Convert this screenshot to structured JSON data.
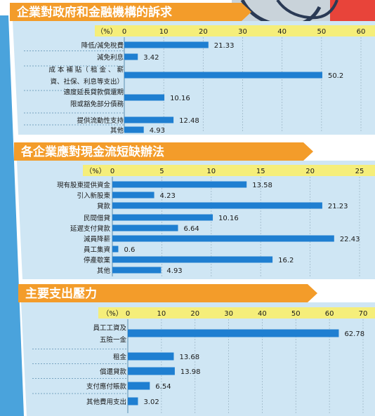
{
  "colors": {
    "title_banner": "#f39c2a",
    "panel": "#cfe6f4",
    "bar": "#1f7fd1",
    "axis_band": "#f5ee7a",
    "left_strip": "#4aa3dc"
  },
  "chart_data": [
    {
      "type": "bar",
      "orientation": "horizontal",
      "title": "企業對政府和金融機構的訴求",
      "unit": "（%）",
      "xlim": [
        0,
        60
      ],
      "ticks": [
        "0",
        "10",
        "20",
        "30",
        "40",
        "50",
        "60"
      ],
      "categories": [
        [
          "降低/減免稅費"
        ],
        [
          "減免利息"
        ],
        [
          "成 本 補 貼（ 租 金 、 薪",
          "資、社保、利息等支出）"
        ],
        [
          "適度延長貸款償還期",
          "限或豁免部分債務"
        ],
        [
          "提供流動性支持"
        ],
        [
          "其他"
        ]
      ],
      "values": [
        21.33,
        3.42,
        50.2,
        10.16,
        12.48,
        4.93
      ],
      "value_labels": [
        "21.33",
        "3.42",
        "50.2",
        "10.16",
        "12.48",
        "4.93"
      ]
    },
    {
      "type": "bar",
      "orientation": "horizontal",
      "title": "各企業應對現金流短缺辦法",
      "unit": "（%）",
      "xlim": [
        0,
        25
      ],
      "ticks": [
        "0",
        "5",
        "10",
        "15",
        "20",
        "25"
      ],
      "categories": [
        [
          "現有股東提供資金"
        ],
        [
          "引入新股東"
        ],
        [
          "貸款"
        ],
        [
          "民間借貸"
        ],
        [
          "延遲支付貸款"
        ],
        [
          "減員降薪"
        ],
        [
          "員工集資"
        ],
        [
          "停產歇業"
        ],
        [
          "其他"
        ]
      ],
      "values": [
        13.58,
        4.23,
        21.23,
        10.16,
        6.64,
        22.43,
        0.6,
        16.2,
        4.93
      ],
      "value_labels": [
        "13.58",
        "4.23",
        "21.23",
        "10.16",
        "6.64",
        "22.43",
        "0.6",
        "16.2",
        "4.93"
      ]
    },
    {
      "type": "bar",
      "orientation": "horizontal",
      "title": "主要支出壓力",
      "unit": "（%）",
      "xlim": [
        0,
        70
      ],
      "ticks": [
        "0",
        "10",
        "20",
        "30",
        "40",
        "50",
        "60",
        "70"
      ],
      "categories": [
        [
          "員工工資及",
          "五險一金"
        ],
        [
          "租金"
        ],
        [
          "償還貸款"
        ],
        [
          "支付應付賬款"
        ],
        [
          "其他費用支出"
        ]
      ],
      "values": [
        62.78,
        13.68,
        13.98,
        6.54,
        3.02
      ],
      "value_labels": [
        "62.78",
        "13.68",
        "13.98",
        "6.54",
        "3.02"
      ]
    }
  ]
}
